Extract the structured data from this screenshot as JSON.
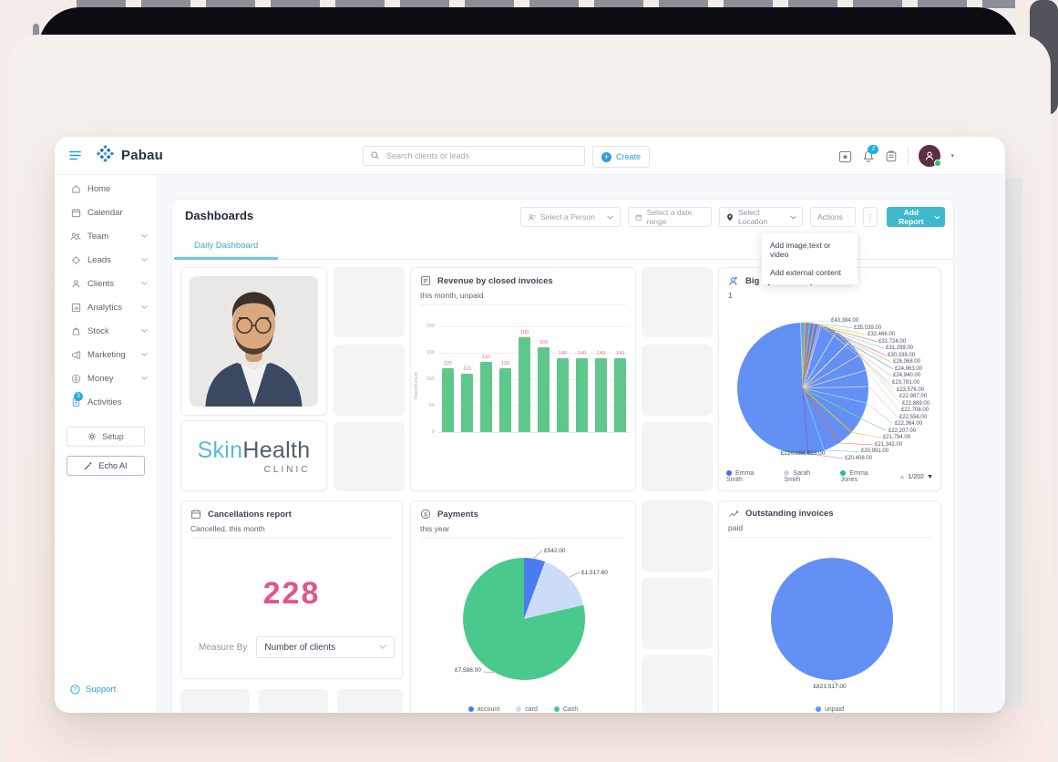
{
  "topbar": {
    "brand": "Pabau",
    "search_placeholder": "Search clients or leads",
    "create_label": "Create",
    "notification_badge": "2"
  },
  "sidebar": {
    "items": [
      {
        "label": "Home",
        "icon": "home"
      },
      {
        "label": "Calendar",
        "icon": "calendar"
      },
      {
        "label": "Team",
        "icon": "team",
        "expandable": true
      },
      {
        "label": "Leads",
        "icon": "leads",
        "expandable": true
      },
      {
        "label": "Clients",
        "icon": "clients",
        "expandable": true
      },
      {
        "label": "Analytics",
        "icon": "analytics",
        "expandable": true
      },
      {
        "label": "Stock",
        "icon": "stock",
        "expandable": true
      },
      {
        "label": "Marketing",
        "icon": "marketing",
        "expandable": true
      },
      {
        "label": "Money",
        "icon": "money",
        "expandable": true
      },
      {
        "label": "Activities",
        "icon": "activities",
        "badge": "3"
      }
    ],
    "setup_label": "Setup",
    "echo_ai_label": "Echo AI",
    "support_label": "Support"
  },
  "dashboard": {
    "title": "Dashboards",
    "filters": {
      "person": "Select a Person",
      "date_range": "Select a date range",
      "location": "Select Location",
      "actions": "Actions",
      "add_report": "Add Report"
    },
    "actions_menu": [
      "Add image,text or video",
      "Add external content"
    ],
    "tabs": [
      {
        "label": "Daily Dashboard",
        "active": true
      }
    ]
  },
  "cards": {
    "logo": {
      "skin": "Skin",
      "health": "Health",
      "clinic": "CLINIC"
    },
    "revenue": {
      "title": "Revenue by closed invoices",
      "subtitle": "this month, unpaid"
    },
    "big_spender": {
      "title": "Big Spender Report",
      "subtitle": "1"
    },
    "cancellations": {
      "title": "Cancellations report",
      "subtitle": "Cancelled, this month",
      "value": "228",
      "measure_by_label": "Measure By",
      "measure_by_value": "Number of clients"
    },
    "payments": {
      "title": "Payments",
      "subtitle": "this year"
    },
    "outstanding": {
      "title": "Outstanding invoices",
      "subtitle": "paid"
    }
  },
  "colors": {
    "accent_blue": "#2b9fd8",
    "teal_button": "#41b9cd",
    "bar_green": "#5fc78c",
    "pink": "#ee6a99",
    "big_pink": "#e2548e",
    "pie_blue": "#6290f5",
    "pie_blue_dark": "#4a7cf0",
    "pie_light_blue": "#ccdcf8",
    "pie_green": "#49c98c"
  },
  "chart_data": [
    {
      "type": "bar",
      "title": "Revenue by closed invoices",
      "subtitle": "this month, unpaid",
      "ylabel": "Record count",
      "ylim": [
        0,
        200
      ],
      "yticks": [
        0,
        50,
        100,
        150,
        200
      ],
      "values": [
        120,
        110,
        132,
        120,
        180,
        160,
        140,
        140,
        140,
        140
      ],
      "bar_color": "#5fc78c",
      "label_color": "#ee6a99"
    },
    {
      "type": "pie",
      "title": "Big Spender Report",
      "subtitle": "1",
      "main_slice": {
        "label": "Emma Smith",
        "display": "£210,088,853.00",
        "color": "#6290f5"
      },
      "callouts": [
        "£43,384.00",
        "£35,039.00",
        "£32,486.00",
        "£31,724.00",
        "£31,299.00",
        "£30,338.00",
        "£26,068.00",
        "£24,963.00",
        "£24,940.00",
        "£23,781.00",
        "£23,576.00",
        "£22,987.00",
        "£22,889.00",
        "£22,708.00",
        "£22,556.00",
        "£22,364.00",
        "£22,207.00",
        "£21,794.00",
        "£21,342.00",
        "£20,991.00",
        "£20,408.00"
      ],
      "legend": [
        {
          "name": "Emma Smith",
          "color": "#3f6ef2"
        },
        {
          "name": "Sarah Smith",
          "color": "#c3d5f7"
        },
        {
          "name": "Emma Jones",
          "color": "#2fbf78"
        }
      ],
      "pagination": "1/202"
    },
    {
      "type": "pie",
      "title": "Payments",
      "subtitle": "this year",
      "slices": [
        {
          "label": "account",
          "value": 542.0,
          "display": "£542.00",
          "color": "#4a7cf0"
        },
        {
          "label": "card",
          "value": 1517.6,
          "display": "£1,517.60",
          "color": "#ccdcf8"
        },
        {
          "label": "Cash",
          "value": 7588.0,
          "display": "£7,588.00",
          "color": "#49c98c"
        }
      ]
    },
    {
      "type": "pie",
      "title": "Outstanding invoices",
      "subtitle": "paid",
      "slices": [
        {
          "label": "unpaid",
          "value": 823517.0,
          "display": "£823,517.00",
          "color": "#6290f5"
        }
      ]
    }
  ]
}
